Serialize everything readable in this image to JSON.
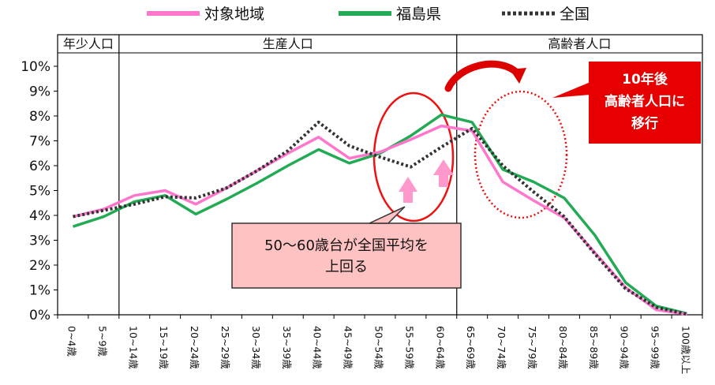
{
  "chart_data": {
    "type": "line",
    "categories": [
      "0~4歳",
      "5~9歳",
      "10~14歳",
      "15~19歳",
      "20~24歳",
      "25~29歳",
      "30~34歳",
      "35~39歳",
      "40~44歳",
      "45~49歳",
      "50~54歳",
      "55~59歳",
      "60~64歳",
      "65~69歳",
      "70~74歳",
      "75~79歳",
      "80~84歳",
      "85~89歳",
      "90~94歳",
      "95~99歳",
      "100歳以上"
    ],
    "ylim": [
      0,
      10
    ],
    "yticks": [
      "0%",
      "1%",
      "2%",
      "3%",
      "4%",
      "5%",
      "6%",
      "7%",
      "8%",
      "9%",
      "10%"
    ],
    "series": [
      {
        "name": "対象地域",
        "color": "#ff77cc",
        "dash": "solid",
        "values": [
          3.95,
          4.25,
          4.8,
          5.0,
          4.45,
          5.1,
          5.8,
          6.5,
          7.15,
          6.3,
          6.55,
          7.05,
          7.6,
          7.4,
          5.35,
          4.6,
          3.9,
          2.5,
          1.1,
          0.2,
          0.02
        ]
      },
      {
        "name": "福島県",
        "color": "#22aa55",
        "dash": "solid",
        "values": [
          3.55,
          3.95,
          4.55,
          4.8,
          4.05,
          4.65,
          5.3,
          6.0,
          6.65,
          6.1,
          6.5,
          7.2,
          8.05,
          7.75,
          5.85,
          5.35,
          4.7,
          3.2,
          1.3,
          0.35,
          0.05
        ]
      },
      {
        "name": "全国",
        "color": "#333333",
        "dash": "dotted",
        "values": [
          3.95,
          4.2,
          4.45,
          4.75,
          4.7,
          5.1,
          5.8,
          6.6,
          7.75,
          6.8,
          6.35,
          5.95,
          6.75,
          7.5,
          6.0,
          4.95,
          3.95,
          2.45,
          1.05,
          0.3,
          0.02
        ]
      }
    ],
    "groups": [
      {
        "label": "年少人口",
        "from": 0,
        "to": 2
      },
      {
        "label": "生産人口",
        "from": 2,
        "to": 13
      },
      {
        "label": "高齢者人口",
        "from": 13,
        "to": 20
      }
    ],
    "annotations": {
      "callout_pink": "50〜60歳台が全国平均を上回る",
      "callout_red": "10年後高齢者人口に移行"
    }
  }
}
